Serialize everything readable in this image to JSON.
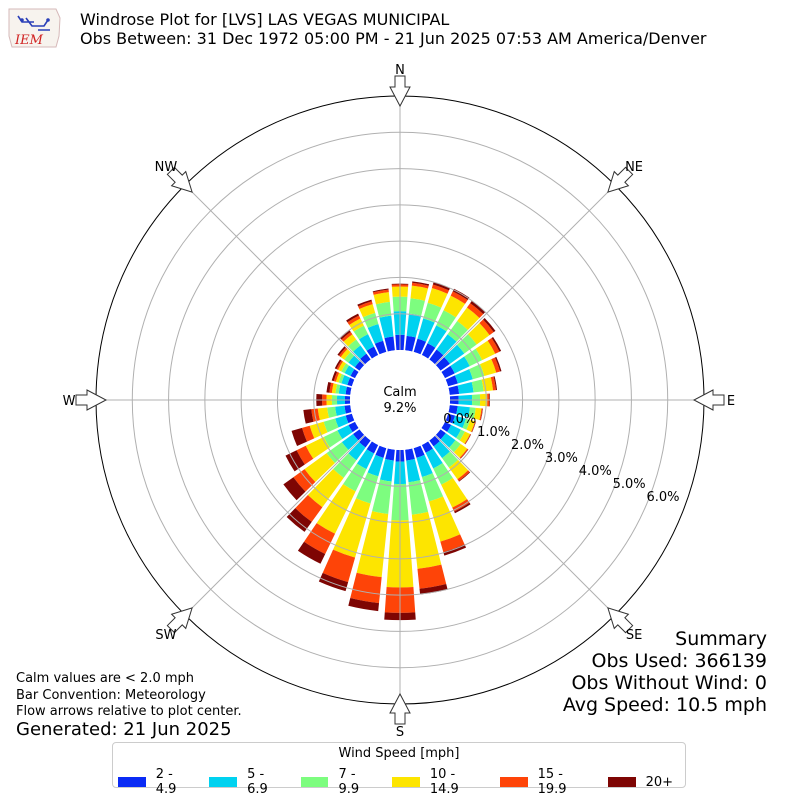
{
  "header": {
    "logo_text": "IEM",
    "title": "Windrose Plot for [LVS] LAS VEGAS MUNICIPAL",
    "subtitle": "Obs Between: 31 Dec 1972 05:00 PM - 21 Jun 2025 07:53 AM America/Denver"
  },
  "notes": {
    "calm": "Calm values are < 2.0 mph",
    "bar": "Bar Convention: Meteorology",
    "flow": "Flow arrows relative to plot center.",
    "generated": "Generated: 21 Jun 2025"
  },
  "summary": {
    "title": "Summary",
    "obs_used": "Obs Used: 366139",
    "obs_without_wind": "Obs Without Wind: 0",
    "avg_speed": "Avg Speed: 10.5 mph"
  },
  "legend": {
    "title": "Wind Speed [mph]",
    "items": [
      {
        "label": "2 - 4.9",
        "color": "#0a2bf5"
      },
      {
        "label": "5 - 6.9",
        "color": "#00d2f0"
      },
      {
        "label": "7 - 9.9",
        "color": "#7dfd7f"
      },
      {
        "label": "10 - 14.9",
        "color": "#fde500"
      },
      {
        "label": "15 - 19.9",
        "color": "#fe4408"
      },
      {
        "label": "20+",
        "color": "#7e0503"
      }
    ]
  },
  "chart_data": {
    "type": "windrose",
    "calm": {
      "label": "Calm",
      "value": "9.2%"
    },
    "directions": [
      "N",
      "NE",
      "E",
      "SE",
      "S",
      "SW",
      "W",
      "NW"
    ],
    "radial_ticks": [
      "0.0%",
      "1.0%",
      "2.0%",
      "3.0%",
      "4.0%",
      "5.0%",
      "6.0%"
    ],
    "radial_range": [
      0,
      7
    ],
    "bin_count": 36,
    "bin_angles_deg": [
      0,
      10,
      20,
      30,
      40,
      50,
      60,
      70,
      80,
      90,
      100,
      110,
      120,
      130,
      140,
      150,
      160,
      170,
      180,
      190,
      200,
      210,
      220,
      230,
      240,
      250,
      260,
      270,
      280,
      290,
      300,
      310,
      320,
      330,
      340,
      350
    ],
    "series": [
      {
        "name": "2 - 4.9",
        "values": [
          0.42,
          0.4,
          0.38,
          0.36,
          0.34,
          0.32,
          0.3,
          0.28,
          0.26,
          0.24,
          0.22,
          0.2,
          0.19,
          0.18,
          0.2,
          0.24,
          0.28,
          0.3,
          0.32,
          0.3,
          0.28,
          0.26,
          0.24,
          0.22,
          0.2,
          0.18,
          0.16,
          0.14,
          0.13,
          0.13,
          0.14,
          0.16,
          0.2,
          0.26,
          0.32,
          0.38
        ]
      },
      {
        "name": "5 - 6.9",
        "values": [
          0.65,
          0.62,
          0.58,
          0.55,
          0.52,
          0.49,
          0.46,
          0.43,
          0.4,
          0.37,
          0.34,
          0.31,
          0.3,
          0.33,
          0.4,
          0.48,
          0.55,
          0.6,
          0.62,
          0.58,
          0.53,
          0.48,
          0.43,
          0.38,
          0.34,
          0.3,
          0.26,
          0.22,
          0.19,
          0.17,
          0.18,
          0.22,
          0.28,
          0.38,
          0.48,
          0.58
        ]
      },
      {
        "name": "7 - 9.9",
        "values": [
          0.4,
          0.42,
          0.45,
          0.46,
          0.45,
          0.42,
          0.38,
          0.33,
          0.28,
          0.22,
          0.16,
          0.12,
          0.12,
          0.18,
          0.32,
          0.5,
          0.7,
          0.9,
          1.0,
          0.9,
          0.78,
          0.68,
          0.6,
          0.52,
          0.42,
          0.33,
          0.22,
          0.14,
          0.09,
          0.08,
          0.1,
          0.14,
          0.2,
          0.26,
          0.32,
          0.38
        ]
      },
      {
        "name": "10 - 14.9",
        "values": [
          0.28,
          0.35,
          0.42,
          0.45,
          0.46,
          0.44,
          0.4,
          0.34,
          0.26,
          0.2,
          0.16,
          0.14,
          0.16,
          0.22,
          0.4,
          0.7,
          1.15,
          1.5,
          1.85,
          1.75,
          1.55,
          1.3,
          1.0,
          0.75,
          0.55,
          0.4,
          0.26,
          0.15,
          0.1,
          0.08,
          0.1,
          0.12,
          0.18,
          0.22,
          0.25,
          0.27
        ]
      },
      {
        "name": "15 - 19.9",
        "values": [
          0.06,
          0.08,
          0.1,
          0.13,
          0.15,
          0.14,
          0.13,
          0.11,
          0.08,
          0.05,
          0.03,
          0.02,
          0.02,
          0.03,
          0.06,
          0.12,
          0.3,
          0.55,
          0.7,
          0.72,
          0.7,
          0.62,
          0.5,
          0.38,
          0.28,
          0.22,
          0.18,
          0.12,
          0.07,
          0.06,
          0.05,
          0.06,
          0.08,
          0.09,
          0.08,
          0.07
        ]
      },
      {
        "name": "20+",
        "values": [
          0.02,
          0.04,
          0.07,
          0.08,
          0.08,
          0.06,
          0.05,
          0.04,
          0.03,
          0.02,
          0.01,
          0.01,
          0.01,
          0.01,
          0.02,
          0.05,
          0.1,
          0.16,
          0.2,
          0.22,
          0.26,
          0.3,
          0.34,
          0.34,
          0.34,
          0.3,
          0.22,
          0.16,
          0.08,
          0.06,
          0.05,
          0.05,
          0.06,
          0.06,
          0.05,
          0.03
        ]
      }
    ]
  }
}
